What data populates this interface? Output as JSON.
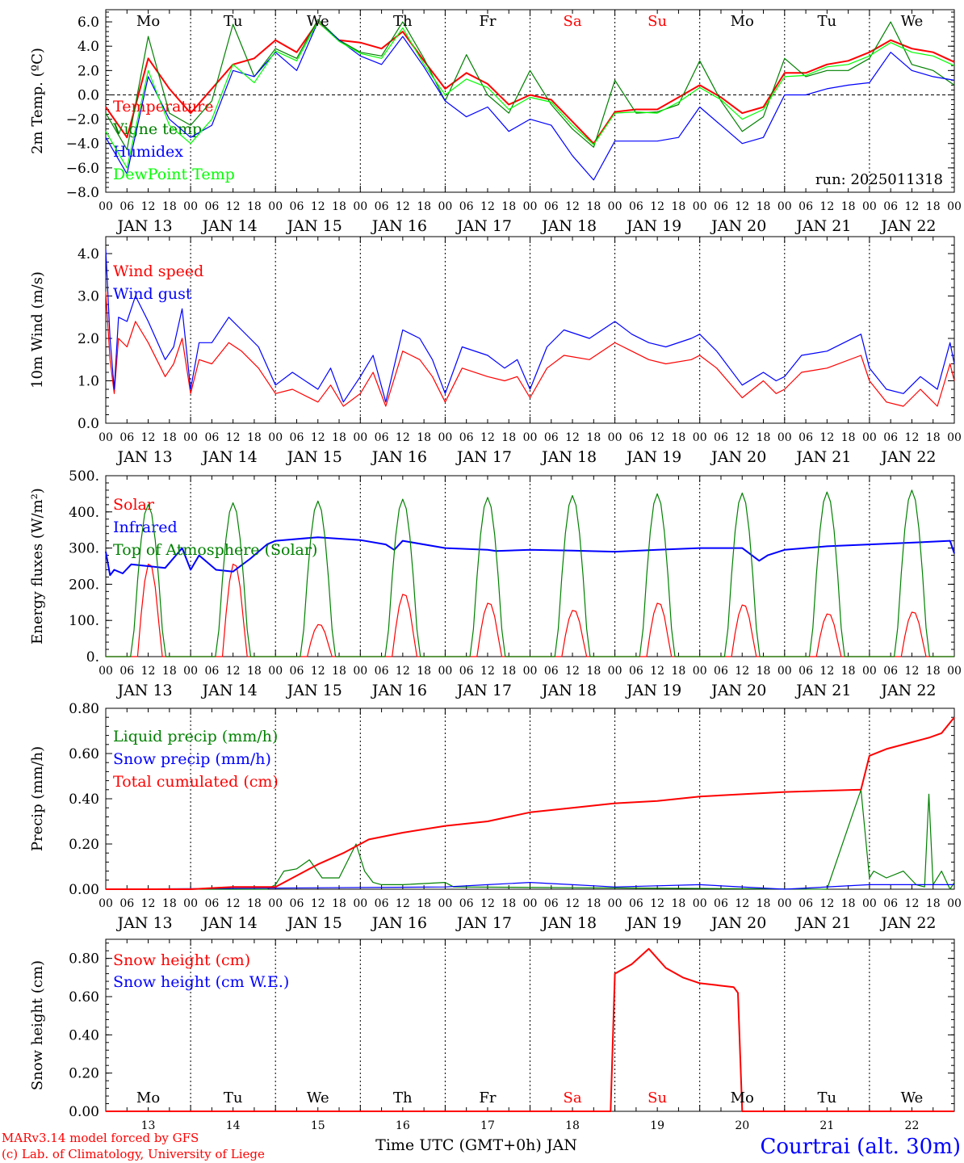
{
  "page": {
    "credit_lines": [
      "MARv3.14 model forced by GFS",
      "(c) Lab. of Climatology, University of Liege"
    ],
    "station": "Courtrai (alt. 30m)",
    "xlabel": "Time UTC (GMT+0h) JAN",
    "colors": {
      "red": "#ff0000",
      "blue": "#0000ff",
      "green": "#008000",
      "lightgreen": "#00ff00",
      "frame": "#000000"
    }
  },
  "axis": {
    "hour_ticks": [
      "00",
      "06",
      "12",
      "18"
    ],
    "day_labels": [
      "JAN 13",
      "JAN 14",
      "JAN 15",
      "JAN 16",
      "JAN 17",
      "JAN 18",
      "JAN 19",
      "JAN 20",
      "JAN 21",
      "JAN 22"
    ],
    "weekdays": [
      "Mo",
      "Tu",
      "We",
      "Th",
      "Fr",
      "Sa",
      "Su",
      "Mo",
      "Tu",
      "We"
    ],
    "weekday_colors": [
      "#000000",
      "#000000",
      "#000000",
      "#000000",
      "#000000",
      "#ff0000",
      "#ff0000",
      "#000000",
      "#000000",
      "#000000"
    ],
    "day_numbers": [
      "13",
      "14",
      "15",
      "16",
      "17",
      "18",
      "19",
      "20",
      "21",
      "22"
    ]
  },
  "chart_data": [
    {
      "type": "line",
      "ylabel": "2m Temp. (ºC)",
      "ylim": [
        -8,
        7
      ],
      "yticks": [
        "6.0",
        "4.0",
        "2.0",
        "0.0",
        "−2.0",
        "−4.0",
        "−6.0",
        "−8.0"
      ],
      "ytick_values": [
        6,
        4,
        2,
        0,
        -2,
        -4,
        -6,
        -8
      ],
      "zero_line": true,
      "run_label": "run: 2025011318",
      "series": [
        {
          "name": "Temperature",
          "color": "#ff0000",
          "x": [
            0,
            0.25,
            0.5,
            0.75,
            1,
            1.25,
            1.5,
            1.75,
            2,
            2.25,
            2.5,
            2.75,
            3,
            3.25,
            3.5,
            3.75,
            4,
            4.25,
            4.5,
            4.75,
            5,
            5.25,
            5.5,
            5.75,
            6,
            6.25,
            6.5,
            6.75,
            7,
            7.25,
            7.5,
            7.75,
            8,
            8.25,
            8.5,
            8.75,
            9,
            9.25,
            9.5,
            9.75,
            10
          ],
          "y": [
            -1.0,
            -3.5,
            3.0,
            0.5,
            -1.5,
            0.5,
            2.5,
            3.0,
            4.5,
            3.5,
            6.0,
            4.5,
            4.3,
            3.8,
            5.2,
            2.8,
            0.5,
            1.8,
            0.9,
            -0.8,
            0.0,
            -0.4,
            -2.2,
            -4.0,
            -1.4,
            -1.2,
            -1.2,
            -0.2,
            0.8,
            -0.2,
            -1.5,
            -1.0,
            1.8,
            1.8,
            2.5,
            2.8,
            3.5,
            4.5,
            3.8,
            3.5,
            2.7
          ]
        },
        {
          "name": "Vigne temp",
          "color": "#008000",
          "x": [
            0,
            0.25,
            0.5,
            0.75,
            1,
            1.25,
            1.5,
            1.75,
            2,
            2.25,
            2.5,
            2.75,
            3,
            3.25,
            3.5,
            3.75,
            4,
            4.25,
            4.5,
            4.75,
            5,
            5.25,
            5.5,
            5.75,
            6,
            6.25,
            6.5,
            6.75,
            7,
            7.25,
            7.5,
            7.75,
            8,
            8.25,
            8.5,
            8.75,
            9,
            9.25,
            9.5,
            9.75,
            10
          ],
          "y": [
            -1.5,
            -4.5,
            4.8,
            -1.5,
            -2.5,
            -0.5,
            5.8,
            1.5,
            3.8,
            3.0,
            6.2,
            4.5,
            3.5,
            3.2,
            6.0,
            3.0,
            -0.5,
            3.3,
            0.0,
            -1.5,
            2.0,
            -0.8,
            -2.8,
            -4.3,
            1.2,
            -1.5,
            -1.4,
            -0.8,
            2.8,
            -0.5,
            -3.0,
            -1.8,
            3.0,
            1.5,
            2.0,
            2.0,
            3.0,
            6.0,
            2.5,
            2.0,
            0.8
          ]
        },
        {
          "name": "Humidex",
          "color": "#0000ff",
          "x": [
            0,
            0.25,
            0.5,
            0.75,
            1,
            1.25,
            1.5,
            1.75,
            2,
            2.25,
            2.5,
            2.75,
            3,
            3.25,
            3.5,
            3.75,
            4,
            4.25,
            4.5,
            4.75,
            5,
            5.25,
            5.5,
            5.75,
            6,
            6.25,
            6.5,
            6.75,
            7,
            7.25,
            7.5,
            7.75,
            8,
            8.25,
            8.5,
            8.75,
            9,
            9.25,
            9.5,
            9.75,
            10
          ],
          "y": [
            -3.5,
            -6.5,
            1.5,
            -2.0,
            -3.5,
            -2.5,
            2.0,
            1.5,
            3.5,
            2.0,
            6.0,
            4.5,
            3.2,
            2.5,
            4.8,
            2.3,
            -0.5,
            -1.8,
            -1.0,
            -3.0,
            -2.0,
            -2.5,
            -5.0,
            -7.0,
            -3.8,
            -3.8,
            -3.8,
            -3.5,
            -1.0,
            -2.5,
            -4.0,
            -3.5,
            0.0,
            0.0,
            0.5,
            0.8,
            1.0,
            3.5,
            2.0,
            1.5,
            1.2
          ]
        },
        {
          "name": "DewPoint Temp",
          "color": "#00ff00",
          "x": [
            0,
            0.25,
            0.5,
            0.75,
            1,
            1.25,
            1.5,
            1.75,
            2,
            2.25,
            2.5,
            2.75,
            3,
            3.25,
            3.5,
            3.75,
            4,
            4.25,
            4.5,
            4.75,
            5,
            5.25,
            5.5,
            5.75,
            6,
            6.25,
            6.5,
            6.75,
            7,
            7.25,
            7.5,
            7.75,
            8,
            8.25,
            8.5,
            8.75,
            9,
            9.25,
            9.5,
            9.75,
            10
          ],
          "y": [
            -3.0,
            -6.0,
            2.0,
            -2.5,
            -4.0,
            -2.0,
            2.5,
            1.0,
            3.6,
            2.8,
            6.0,
            4.4,
            3.4,
            3.0,
            5.5,
            2.5,
            0.0,
            1.3,
            0.6,
            -1.2,
            -0.2,
            -0.6,
            -2.5,
            -4.1,
            -1.5,
            -1.4,
            -1.5,
            -0.6,
            0.6,
            -0.4,
            -2.0,
            -1.2,
            1.5,
            1.6,
            2.3,
            2.5,
            3.2,
            4.3,
            3.5,
            3.2,
            2.4
          ]
        }
      ]
    },
    {
      "type": "line",
      "ylabel": "10m Wind (m/s)",
      "ylim": [
        0,
        4.4
      ],
      "yticks": [
        "4.0",
        "3.0",
        "2.0",
        "1.0",
        "0.0"
      ],
      "ytick_values": [
        4,
        3,
        2,
        1,
        0
      ],
      "series": [
        {
          "name": "Wind speed",
          "color": "#ff0000",
          "x": [
            0,
            0.05,
            0.1,
            0.15,
            0.25,
            0.35,
            0.5,
            0.7,
            0.8,
            0.9,
            1.0,
            1.1,
            1.25,
            1.45,
            1.6,
            1.8,
            2.0,
            2.2,
            2.5,
            2.65,
            2.8,
            3.0,
            3.15,
            3.3,
            3.5,
            3.7,
            3.85,
            4.0,
            4.2,
            4.5,
            4.7,
            4.85,
            5.0,
            5.2,
            5.4,
            5.7,
            6.0,
            6.2,
            6.4,
            6.6,
            6.9,
            7.0,
            7.2,
            7.5,
            7.75,
            7.9,
            8.0,
            8.2,
            8.5,
            8.9,
            9.0,
            9.2,
            9.4,
            9.6,
            9.8,
            9.95,
            10
          ],
          "y": [
            3.1,
            1.5,
            0.7,
            2.0,
            1.8,
            2.4,
            1.9,
            1.1,
            1.4,
            2.0,
            0.7,
            1.5,
            1.4,
            1.9,
            1.7,
            1.3,
            0.7,
            0.8,
            0.5,
            0.9,
            0.4,
            0.7,
            1.2,
            0.4,
            1.7,
            1.5,
            1.1,
            0.5,
            1.3,
            1.1,
            1.0,
            1.1,
            0.6,
            1.3,
            1.6,
            1.5,
            1.9,
            1.7,
            1.5,
            1.4,
            1.5,
            1.6,
            1.3,
            0.6,
            1.0,
            0.7,
            0.8,
            1.2,
            1.3,
            1.6,
            1.0,
            0.5,
            0.4,
            0.8,
            0.4,
            1.4,
            1.0
          ]
        },
        {
          "name": "Wind gust",
          "color": "#0000ff",
          "x": [
            0,
            0.05,
            0.1,
            0.15,
            0.25,
            0.35,
            0.5,
            0.7,
            0.8,
            0.9,
            1.0,
            1.1,
            1.25,
            1.45,
            1.6,
            1.8,
            2.0,
            2.2,
            2.5,
            2.65,
            2.8,
            3.0,
            3.15,
            3.3,
            3.5,
            3.7,
            3.85,
            4.0,
            4.2,
            4.5,
            4.7,
            4.85,
            5.0,
            5.2,
            5.4,
            5.7,
            6.0,
            6.2,
            6.4,
            6.6,
            6.9,
            7.0,
            7.2,
            7.5,
            7.75,
            7.9,
            8.0,
            8.2,
            8.5,
            8.9,
            9.0,
            9.2,
            9.4,
            9.6,
            9.8,
            9.95,
            10
          ],
          "y": [
            4.1,
            2.0,
            0.8,
            2.5,
            2.4,
            3.0,
            2.4,
            1.5,
            1.8,
            2.7,
            0.8,
            1.9,
            1.9,
            2.5,
            2.2,
            1.8,
            0.9,
            1.2,
            0.8,
            1.3,
            0.5,
            1.1,
            1.6,
            0.5,
            2.2,
            2.0,
            1.5,
            0.7,
            1.8,
            1.6,
            1.3,
            1.5,
            0.8,
            1.8,
            2.2,
            2.0,
            2.4,
            2.1,
            1.9,
            1.8,
            2.0,
            2.1,
            1.7,
            0.9,
            1.2,
            1.0,
            1.1,
            1.6,
            1.7,
            2.1,
            1.3,
            0.8,
            0.7,
            1.1,
            0.8,
            1.9,
            1.4
          ]
        }
      ]
    },
    {
      "type": "line",
      "ylabel": "Energy fluxes (W/m²)",
      "ylim": [
        0,
        500
      ],
      "yticks": [
        "500.",
        "400.",
        "300.",
        "200.",
        "100.",
        "0."
      ],
      "ytick_values": [
        500,
        400,
        300,
        200,
        100,
        0
      ],
      "series": [
        {
          "name": "Solar",
          "color": "#ff0000",
          "daily_peaks": [
            260,
            260,
            90,
            175,
            150,
            130,
            150,
            145,
            120,
            125
          ]
        },
        {
          "name": "Infrared",
          "color": "#0000ff",
          "x": [
            0,
            0.05,
            0.1,
            0.2,
            0.3,
            0.5,
            0.7,
            0.9,
            1.0,
            1.1,
            1.3,
            1.5,
            1.7,
            1.9,
            2.0,
            2.5,
            3.0,
            3.3,
            3.4,
            3.5,
            4.0,
            4.5,
            4.6,
            5.0,
            5.5,
            6.0,
            6.5,
            7.0,
            7.5,
            7.7,
            7.8,
            8.0,
            8.5,
            9.0,
            9.5,
            9.95,
            10
          ],
          "y": [
            290,
            225,
            240,
            230,
            255,
            250,
            245,
            300,
            240,
            280,
            240,
            235,
            270,
            310,
            320,
            330,
            322,
            310,
            295,
            320,
            300,
            295,
            292,
            295,
            293,
            290,
            295,
            300,
            300,
            265,
            280,
            295,
            305,
            310,
            315,
            320,
            285
          ]
        },
        {
          "name": "Top of Atmosphere (Solar)",
          "color": "#008000",
          "daily_peaks": [
            420,
            425,
            430,
            435,
            440,
            445,
            450,
            452,
            455,
            460
          ]
        }
      ]
    },
    {
      "type": "line",
      "ylabel": "Precip (mm/h)",
      "ylim": [
        0,
        0.8
      ],
      "yticks": [
        "0.80",
        "0.60",
        "0.40",
        "0.20",
        "0.00"
      ],
      "ytick_values": [
        0.8,
        0.6,
        0.4,
        0.2,
        0.0
      ],
      "series": [
        {
          "name": "Liquid precip (mm/h)",
          "color": "#008000",
          "x": [
            0,
            1.9,
            2.0,
            2.1,
            2.25,
            2.4,
            2.55,
            2.75,
            2.95,
            3.05,
            3.15,
            3.25,
            3.5,
            4.0,
            4.1,
            8.5,
            8.9,
            9.0,
            9.05,
            9.2,
            9.4,
            9.55,
            9.65,
            9.7,
            9.75,
            9.85,
            9.95,
            10
          ],
          "y": [
            0,
            0,
            0.02,
            0.08,
            0.09,
            0.13,
            0.05,
            0.05,
            0.2,
            0.08,
            0.03,
            0.02,
            0.02,
            0.03,
            0.01,
            0,
            0.44,
            0.05,
            0.08,
            0.05,
            0.08,
            0.02,
            0.01,
            0.42,
            0.02,
            0.08,
            0.0,
            0.03
          ]
        },
        {
          "name": "Snow precip (mm/h)",
          "color": "#0000ff",
          "x": [
            0,
            4.0,
            4.5,
            5.0,
            5.5,
            6.0,
            7.0,
            8.0,
            9.0,
            10
          ],
          "y": [
            0,
            0.01,
            0.02,
            0.03,
            0.02,
            0.01,
            0.02,
            0.0,
            0.02,
            0.02
          ]
        },
        {
          "name": "Total cumulated (cm)",
          "color": "#ff0000",
          "x": [
            0,
            1.0,
            1.5,
            2.0,
            2.5,
            2.8,
            3.0,
            3.1,
            3.5,
            4.0,
            4.5,
            5.0,
            5.5,
            6.0,
            6.5,
            7.0,
            7.5,
            8.0,
            8.9,
            9.0,
            9.2,
            9.5,
            9.7,
            9.85,
            10
          ],
          "y": [
            0,
            0.0,
            0.01,
            0.01,
            0.11,
            0.16,
            0.2,
            0.22,
            0.25,
            0.28,
            0.3,
            0.34,
            0.36,
            0.38,
            0.39,
            0.41,
            0.42,
            0.43,
            0.44,
            0.59,
            0.62,
            0.65,
            0.67,
            0.69,
            0.76
          ]
        }
      ]
    },
    {
      "type": "line",
      "ylabel": "Snow height (cm)",
      "ylim": [
        0,
        0.9
      ],
      "yticks": [
        "0.80",
        "0.60",
        "0.40",
        "0.20",
        "0.00"
      ],
      "ytick_values": [
        0.8,
        0.6,
        0.4,
        0.2,
        0.0
      ],
      "series": [
        {
          "name": "Snow height (cm)",
          "color": "#ff0000",
          "x": [
            0,
            5.95,
            6.0,
            6.2,
            6.4,
            6.6,
            6.8,
            7.0,
            7.2,
            7.4,
            7.45,
            7.5,
            10
          ],
          "y": [
            0,
            0,
            0.72,
            0.77,
            0.85,
            0.75,
            0.7,
            0.67,
            0.66,
            0.65,
            0.62,
            0,
            0
          ]
        },
        {
          "name": "Snow height (cm W.E.)",
          "color": "#0000ff",
          "x": [],
          "y": []
        }
      ]
    }
  ]
}
